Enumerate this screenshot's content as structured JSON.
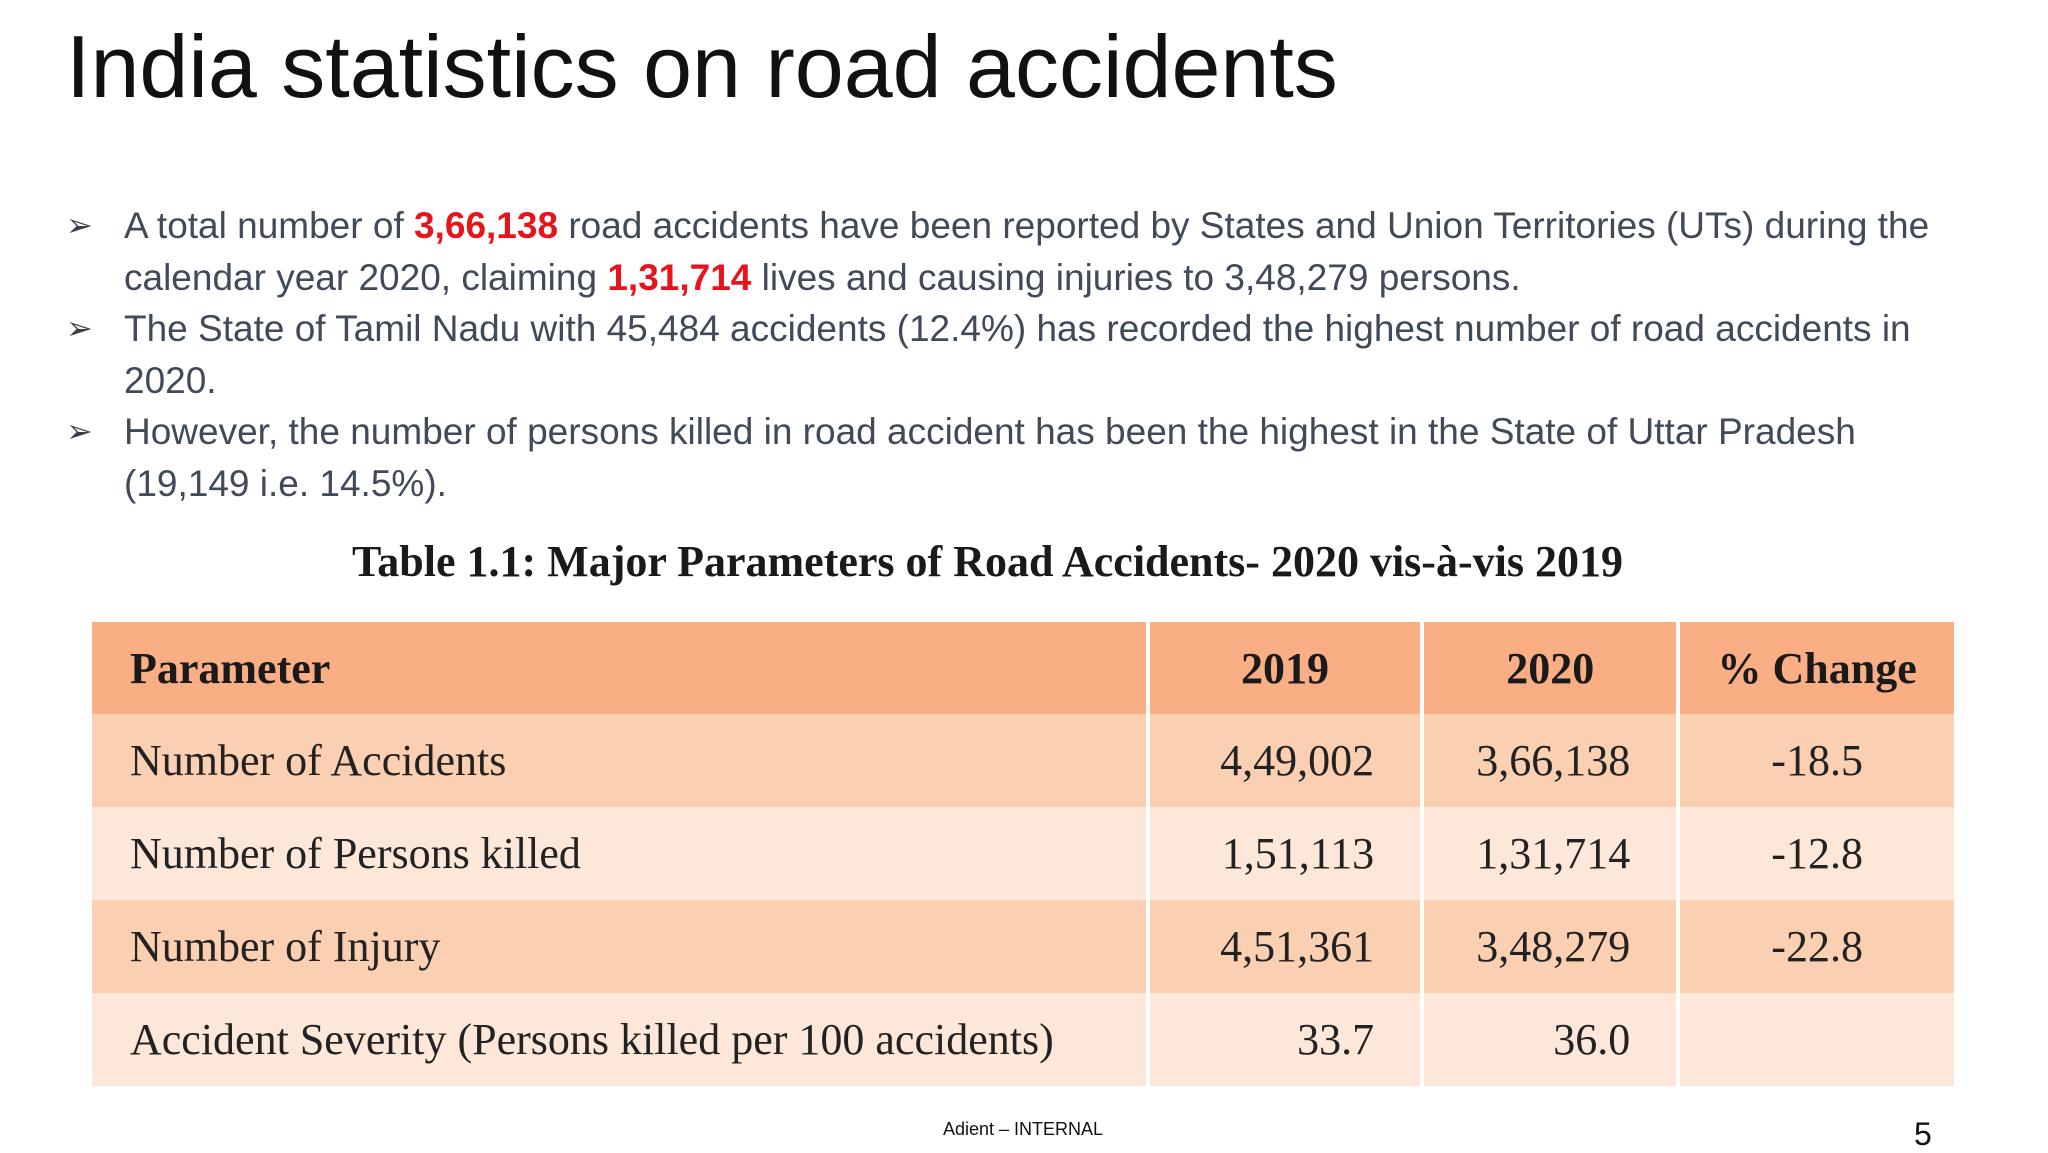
{
  "slide": {
    "title": "India statistics on road accidents",
    "bullets": [
      {
        "icon": "arrow-bullet-icon",
        "symbol": "➢",
        "parts": [
          {
            "text": "A total number of ",
            "highlight": false
          },
          {
            "text": "3,66,138",
            "highlight": true
          },
          {
            "text": " road accidents have been reported by States and Union Territories (UTs) during the calendar year 2020, claiming ",
            "highlight": false
          },
          {
            "text": "1,31,714",
            "highlight": true
          },
          {
            "text": " lives and causing injuries to 3,48,279 persons.",
            "highlight": false
          }
        ]
      },
      {
        "icon": "arrow-bullet-icon",
        "symbol": "➢",
        "parts": [
          {
            "text": "The State of Tamil Nadu with 45,484 accidents (12.4%) has recorded the highest number of road accidents in 2020.",
            "highlight": false
          }
        ]
      },
      {
        "icon": "arrow-bullet-icon",
        "symbol": "➢",
        "parts": [
          {
            "text": "However, the number of persons killed in road accident has been the highest in the State of Uttar Pradesh (19,149 i.e. 14.5%).",
            "highlight": false
          }
        ]
      }
    ],
    "table_title": "Table 1.1: Major Parameters of Road Accidents- 2020 vis-à-vis 2019",
    "table": {
      "headers": [
        "Parameter",
        "2019",
        "2020",
        "% Change"
      ],
      "rows": [
        [
          "Number of Accidents",
          "4,49,002",
          "3,66,138",
          "-18.5"
        ],
        [
          "Number of Persons killed",
          "1,51,113",
          "1,31,714",
          "-12.8"
        ],
        [
          "Number of Injury",
          "4,51,361",
          "3,48,279",
          "-22.8"
        ],
        [
          "Accident Severity (Persons killed per 100 accidents)",
          "33.7",
          "36.0",
          ""
        ]
      ]
    },
    "footer": {
      "label": "Adient – INTERNAL",
      "page_number": "5"
    }
  },
  "colors": {
    "highlight": "#e8141c",
    "header_row": "#f9ae84",
    "row_dark": "#fbcfb2",
    "row_light": "#fde7d9",
    "body_text": "#404a58"
  }
}
